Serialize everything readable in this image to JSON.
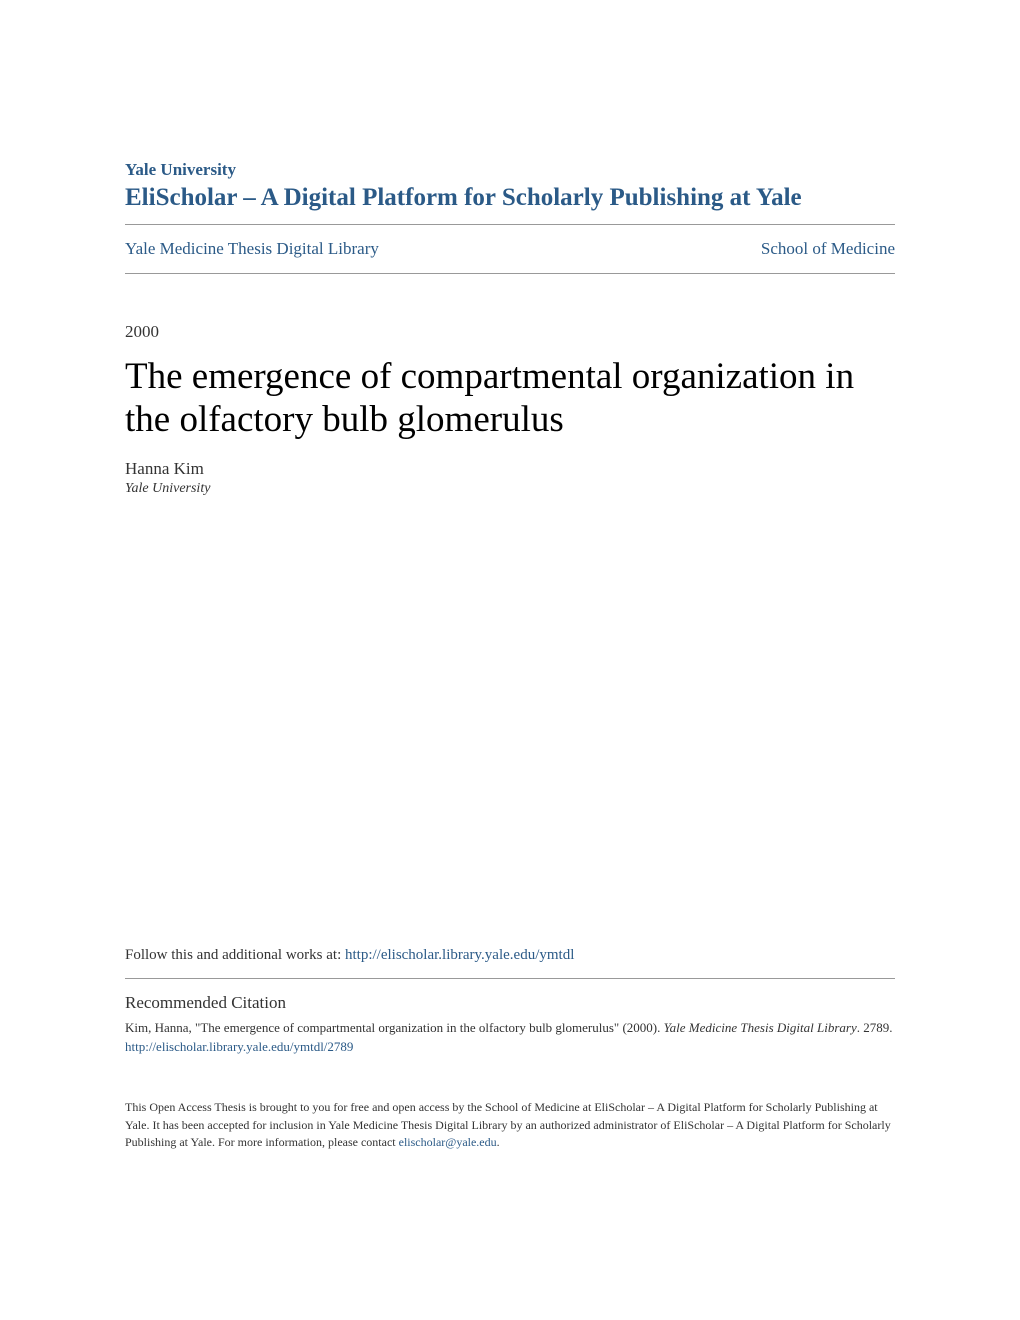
{
  "header": {
    "university": "Yale University",
    "platform": "EliScholar – A Digital Platform for Scholarly Publishing at Yale"
  },
  "breadcrumb": {
    "left": "Yale Medicine Thesis Digital Library",
    "right": "School of Medicine"
  },
  "paper": {
    "year": "2000",
    "title": "The emergence of compartmental organization in the olfactory bulb glomerulus",
    "author": "Hanna Kim",
    "affiliation": "Yale University"
  },
  "follow": {
    "prefix": "Follow this and additional works at: ",
    "url": "http://elischolar.library.yale.edu/ymtdl"
  },
  "citation": {
    "heading": "Recommended Citation",
    "text_part1": "Kim, Hanna, \"The emergence of compartmental organization in the olfactory bulb glomerulus\" (2000). ",
    "text_italic": "Yale Medicine Thesis Digital Library",
    "text_part2": ". 2789.",
    "url": "http://elischolar.library.yale.edu/ymtdl/2789"
  },
  "footer": {
    "text_part1": "This Open Access Thesis is brought to you for free and open access by the School of Medicine at EliScholar – A Digital Platform for Scholarly Publishing at Yale. It has been accepted for inclusion in Yale Medicine Thesis Digital Library by an authorized administrator of EliScholar – A Digital Platform for Scholarly Publishing at Yale. For more information, please contact ",
    "email": "elischolar@yale.edu",
    "text_part2": "."
  },
  "colors": {
    "link_color": "#2b5a87",
    "text_color": "#333333",
    "title_color": "#000000",
    "divider_color": "#999999",
    "background": "#ffffff"
  },
  "typography": {
    "font_family": "Georgia, Times New Roman, serif",
    "university_fontsize": 17,
    "platform_fontsize": 25,
    "breadcrumb_fontsize": 17,
    "year_fontsize": 17,
    "title_fontsize": 37,
    "author_fontsize": 17,
    "affiliation_fontsize": 14,
    "follow_fontsize": 15,
    "citation_heading_fontsize": 17,
    "citation_text_fontsize": 13,
    "footer_fontsize": 12
  }
}
